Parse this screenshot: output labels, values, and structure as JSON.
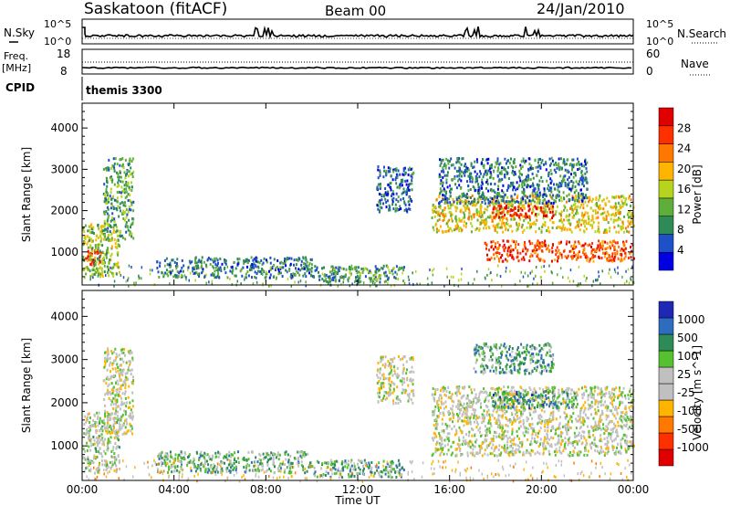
{
  "header": {
    "station": "Saskatoon (fitACF)",
    "beam": "Beam 00",
    "date": "24/Jan/2010"
  },
  "top_panel": {
    "left_label": "N.Sky",
    "right_label": "N.Search",
    "left_ticks": [
      "10^5",
      "10^0"
    ],
    "right_ticks": [
      "10^5",
      "10^0"
    ]
  },
  "freq_panel": {
    "left_label_line1": "Freq.",
    "left_label_line2": "[MHz]",
    "right_label": "Nave",
    "left_ticks": [
      "18",
      "8"
    ],
    "right_ticks": [
      "60",
      "0"
    ]
  },
  "cpid": {
    "label": "CPID",
    "value": "themis 3300"
  },
  "x_axis": {
    "label": "Time UT",
    "ticks": [
      "00:00",
      "04:00",
      "08:00",
      "12:00",
      "16:00",
      "20:00",
      "00:00"
    ]
  },
  "chart_data": [
    {
      "type": "heatmap",
      "panel": "power",
      "ylabel": "Slant Range [km]",
      "y_ticks": [
        1000,
        2000,
        3000,
        4000
      ],
      "ylim": [
        200,
        4600
      ],
      "xlim": [
        0,
        24
      ],
      "colorbar_label": "Power [dB]",
      "colorbar_ticks": [
        "28",
        "24",
        "20",
        "16",
        "12",
        "8",
        "4"
      ],
      "colorbar_colors": [
        "#0000e0",
        "#1e50c8",
        "#2e8b57",
        "#5fae3c",
        "#b6d41e",
        "#ffb400",
        "#ff7800",
        "#ff3000",
        "#e00000"
      ],
      "regions": [
        {
          "t0": 0.0,
          "t1": 0.9,
          "r0": 700,
          "r1": 1100,
          "level": 0.9
        },
        {
          "t0": 0.0,
          "t1": 1.6,
          "r0": 400,
          "r1": 1700,
          "level": 0.45
        },
        {
          "t0": 0.9,
          "t1": 2.2,
          "r0": 1300,
          "r1": 3300,
          "level": 0.35
        },
        {
          "t0": 3.2,
          "t1": 10.0,
          "r0": 400,
          "r1": 900,
          "level": 0.25
        },
        {
          "t0": 10.0,
          "t1": 14.0,
          "r0": 300,
          "r1": 700,
          "level": 0.3
        },
        {
          "t0": 12.8,
          "t1": 14.4,
          "r0": 2000,
          "r1": 3100,
          "level": 0.2
        },
        {
          "t0": 15.2,
          "t1": 24.0,
          "r0": 1500,
          "r1": 2400,
          "level": 0.55
        },
        {
          "t0": 17.8,
          "t1": 20.5,
          "r0": 1850,
          "r1": 2150,
          "level": 0.95
        },
        {
          "t0": 17.5,
          "t1": 24.0,
          "r0": 800,
          "r1": 1300,
          "level": 0.8
        },
        {
          "t0": 15.5,
          "t1": 22.0,
          "r0": 2200,
          "r1": 3300,
          "level": 0.25
        }
      ]
    },
    {
      "type": "heatmap",
      "panel": "velocity",
      "ylabel": "Slant Range [km]",
      "y_ticks": [
        1000,
        2000,
        3000,
        4000
      ],
      "ylim": [
        200,
        4600
      ],
      "xlim": [
        0,
        24
      ],
      "colorbar_label": "Velocity [m s^-1]",
      "colorbar_ticks": [
        "1000",
        "500",
        "100",
        "25",
        "-25",
        "-100",
        "-500",
        "-1000"
      ],
      "colorbar_colors": [
        "#1e28b4",
        "#2e6cc0",
        "#2e8b57",
        "#55c030",
        "#c0c0c0",
        "#c0c0c0",
        "#ffb400",
        "#ff7800",
        "#ff3000",
        "#e00000"
      ],
      "regions": [
        {
          "t0": 0.0,
          "t1": 1.6,
          "r0": 400,
          "r1": 1800,
          "level": 0.45
        },
        {
          "t0": 0.9,
          "t1": 2.2,
          "r0": 1300,
          "r1": 3300,
          "level": 0.5
        },
        {
          "t0": 3.2,
          "t1": 10.0,
          "r0": 400,
          "r1": 900,
          "level": 0.35
        },
        {
          "t0": 10.0,
          "t1": 14.0,
          "r0": 300,
          "r1": 700,
          "level": 0.3
        },
        {
          "t0": 12.8,
          "t1": 14.4,
          "r0": 2000,
          "r1": 3100,
          "level": 0.5
        },
        {
          "t0": 15.2,
          "t1": 24.0,
          "r0": 800,
          "r1": 2400,
          "level": 0.5
        },
        {
          "t0": 17.8,
          "t1": 21.5,
          "r0": 1900,
          "r1": 2300,
          "level": 0.25
        },
        {
          "t0": 17.0,
          "t1": 20.5,
          "r0": 2700,
          "r1": 3400,
          "level": 0.3
        }
      ]
    }
  ]
}
